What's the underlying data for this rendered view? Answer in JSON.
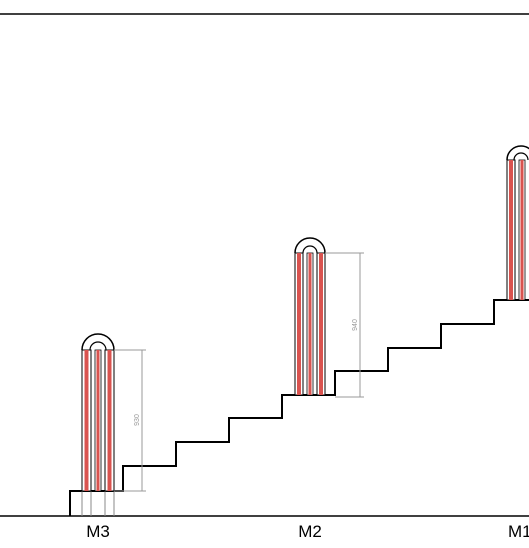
{
  "diagram": {
    "labels": {
      "m3": "M3",
      "m2": "M2",
      "m1": "M1"
    },
    "dimensions": {
      "m3": "930",
      "m2": "940"
    },
    "colors": {
      "line": "#000000",
      "tube_red": "#d9534f",
      "tube_light": "#f5e6e6",
      "dimension": "#999999"
    }
  }
}
